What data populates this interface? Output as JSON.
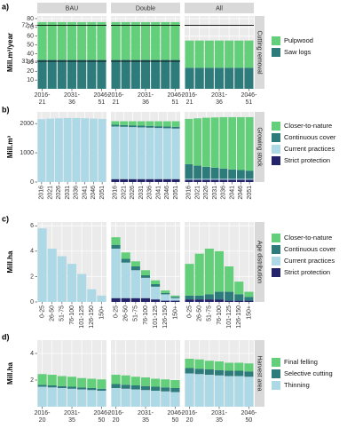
{
  "chart_data": [
    {
      "type": "bar",
      "stacked": true,
      "panel_label": "a)",
      "ylabel": "Mill.m³/year",
      "strip": "Cutting removal",
      "facets": [
        "BAU",
        "Double",
        "All"
      ],
      "categories": [
        "2016-21",
        null,
        null,
        "2031-36",
        null,
        null,
        "2046-51"
      ],
      "ylim": [
        0,
        83
      ],
      "yticks": [
        10,
        20,
        30,
        31.4,
        40,
        50,
        60,
        70,
        72.4,
        80
      ],
      "hlines": [
        [
          72.4,
          31.4
        ],
        [
          72.4,
          31.4
        ],
        [
          72.4
        ]
      ],
      "series": [
        {
          "name": "Pulpwood",
          "color": "#63cf7a",
          "values": [
            [
              43,
              43,
              43,
              43,
              43,
              43,
              43
            ],
            [
              43,
              43,
              43,
              43,
              43,
              43,
              43
            ],
            [
              31,
              31,
              31,
              31,
              31,
              31,
              31
            ]
          ]
        },
        {
          "name": "Saw logs",
          "color": "#2e7b7b",
          "values": [
            [
              33,
              33,
              33,
              33,
              33,
              33,
              33
            ],
            [
              33,
              33,
              33,
              33,
              33,
              33,
              33
            ],
            [
              24,
              24,
              24,
              24,
              24,
              24,
              24
            ]
          ]
        }
      ]
    },
    {
      "type": "bar",
      "stacked": true,
      "panel_label": "b)",
      "ylabel": "Mill.m³",
      "strip": "Growing stock",
      "categories": [
        "2016",
        "2021",
        "2026",
        "2031",
        "2036",
        "2041",
        "2046",
        "2051"
      ],
      "ylim": [
        0,
        2400
      ],
      "yticks": [
        0,
        1000,
        2000
      ],
      "series": [
        {
          "name": "Closer-to-nature",
          "color": "#63cf7a",
          "values": [
            [
              0,
              0,
              0,
              0,
              0,
              0,
              0,
              0
            ],
            [
              120,
              130,
              140,
              150,
              160,
              170,
              180,
              190
            ],
            [
              1550,
              1620,
              1680,
              1720,
              1760,
              1790,
              1810,
              1830
            ]
          ]
        },
        {
          "name": "Continuous cover",
          "color": "#2e7b7b",
          "values": [
            [
              0,
              0,
              0,
              0,
              0,
              0,
              0,
              0
            ],
            [
              60,
              60,
              60,
              60,
              60,
              60,
              60,
              60
            ],
            [
              500,
              450,
              410,
              380,
              350,
              320,
              300,
              280
            ]
          ]
        },
        {
          "name": "Current practices",
          "color": "#add8e6",
          "values": [
            [
              2150,
              2170,
              2180,
              2190,
              2190,
              2180,
              2170,
              2160
            ],
            [
              1800,
              1790,
              1780,
              1770,
              1760,
              1750,
              1740,
              1730
            ],
            [
              30,
              30,
              30,
              30,
              30,
              30,
              30,
              30
            ]
          ]
        },
        {
          "name": "Strict protection",
          "color": "#24246b",
          "values": [
            [
              0,
              0,
              0,
              0,
              0,
              0,
              0,
              0
            ],
            [
              100,
              100,
              100,
              100,
              100,
              100,
              100,
              100
            ],
            [
              80,
              80,
              80,
              80,
              80,
              80,
              80,
              80
            ]
          ]
        }
      ]
    },
    {
      "type": "bar",
      "stacked": true,
      "panel_label": "c)",
      "ylabel": "Mill.ha",
      "strip": "Age distribution",
      "categories": [
        "0-25",
        "26-50",
        "51-75",
        "76-100",
        "101-125",
        "126-150",
        "150+"
      ],
      "ylim": [
        0,
        6.3
      ],
      "yticks": [
        0,
        2,
        4,
        6
      ],
      "series": [
        {
          "name": "Closer-to-nature",
          "color": "#63cf7a",
          "values": [
            [
              0,
              0,
              0,
              0,
              0,
              0,
              0
            ],
            [
              0.6,
              0.5,
              0.4,
              0.4,
              0.3,
              0.2,
              0.1
            ],
            [
              2.5,
              3.3,
              3.6,
              3.2,
              2.0,
              1.0,
              0.4
            ]
          ]
        },
        {
          "name": "Continuous cover",
          "color": "#2e7b7b",
          "values": [
            [
              0,
              0,
              0,
              0,
              0,
              0,
              0
            ],
            [
              0.3,
              0.3,
              0.3,
              0.2,
              0.2,
              0.1,
              0.1
            ],
            [
              0.3,
              0.3,
              0.4,
              0.6,
              0.7,
              0.5,
              0.3
            ]
          ]
        },
        {
          "name": "Current practices",
          "color": "#add8e6",
          "values": [
            [
              5.8,
              4.2,
              3.6,
              3.0,
              2.2,
              1.0,
              0.5
            ],
            [
              3.9,
              2.8,
              2.2,
              1.6,
              1.0,
              0.5,
              0.2
            ],
            [
              0,
              0,
              0,
              0,
              0,
              0,
              0
            ]
          ]
        },
        {
          "name": "Strict protection",
          "color": "#24246b",
          "values": [
            [
              0,
              0,
              0,
              0,
              0,
              0,
              0
            ],
            [
              0.3,
              0.3,
              0.3,
              0.3,
              0.2,
              0.1,
              0.1
            ],
            [
              0.2,
              0.2,
              0.2,
              0.2,
              0.1,
              0.1,
              0.1
            ]
          ]
        }
      ]
    },
    {
      "type": "bar",
      "stacked": true,
      "panel_label": "d)",
      "ylabel": "Mill.ha",
      "strip": "Harvest area",
      "categories": [
        "2016-20",
        null,
        null,
        "2031-35",
        null,
        null,
        "2046-50"
      ],
      "ylim": [
        0,
        5
      ],
      "yticks": [
        2,
        4
      ],
      "series": [
        {
          "name": "Final felling",
          "color": "#63cf7a",
          "values": [
            [
              0.8,
              0.8,
              0.75,
              0.75,
              0.7,
              0.7,
              0.7
            ],
            [
              0.7,
              0.7,
              0.65,
              0.65,
              0.6,
              0.6,
              0.6
            ],
            [
              0.7,
              0.7,
              0.65,
              0.65,
              0.6,
              0.6,
              0.6
            ]
          ]
        },
        {
          "name": "Selective cutting",
          "color": "#2e7b7b",
          "values": [
            [
              0.15,
              0.15,
              0.15,
              0.15,
              0.15,
              0.15,
              0.15
            ],
            [
              0.3,
              0.3,
              0.3,
              0.3,
              0.3,
              0.3,
              0.3
            ],
            [
              0.4,
              0.4,
              0.4,
              0.4,
              0.4,
              0.4,
              0.4
            ]
          ]
        },
        {
          "name": "Thinning",
          "color": "#add8e6",
          "values": [
            [
              1.5,
              1.45,
              1.4,
              1.35,
              1.3,
              1.25,
              1.2
            ],
            [
              1.4,
              1.35,
              1.3,
              1.25,
              1.2,
              1.15,
              1.1
            ],
            [
              2.5,
              2.45,
              2.4,
              2.35,
              2.3,
              2.3,
              2.25
            ]
          ]
        }
      ]
    }
  ]
}
